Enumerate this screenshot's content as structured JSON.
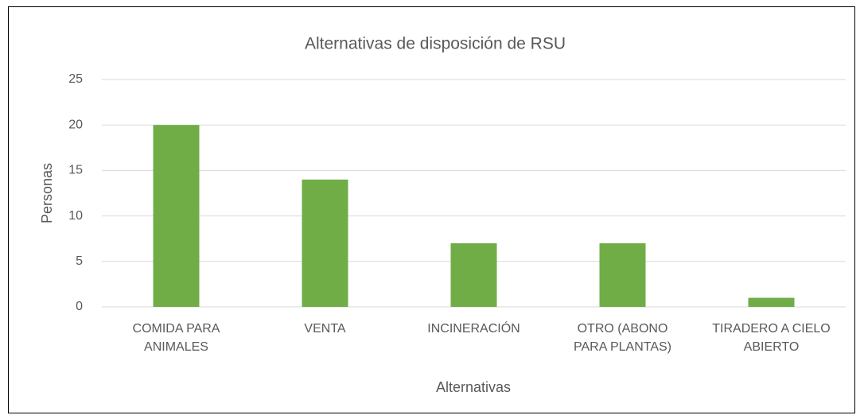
{
  "chart_data": {
    "type": "bar",
    "title": "Alternativas de disposición de RSU",
    "x_label": "Alternativas",
    "y_label": "Personas",
    "categories": [
      "COMIDA PARA\nANIMALES",
      "VENTA",
      "INCINERACIÓN",
      "OTRO (ABONO\nPARA PLANTAS)",
      "TIRADERO A CIELO\nABIERTO"
    ],
    "values": [
      20,
      14,
      7,
      7,
      1
    ],
    "color": "#70ad47",
    "ylim": [
      0,
      25
    ],
    "yticks": [
      0,
      5,
      10,
      15,
      20,
      25
    ],
    "grid": true
  }
}
